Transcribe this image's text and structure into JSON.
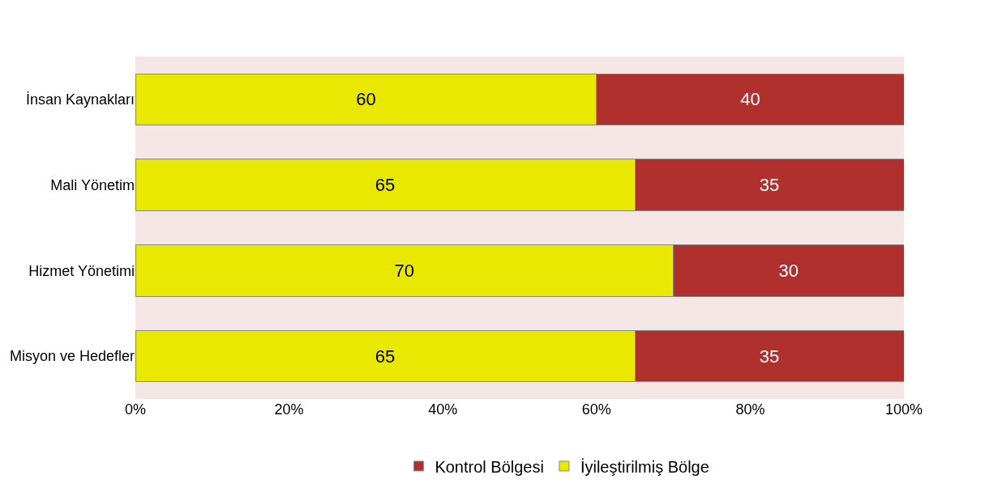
{
  "chart_data": {
    "type": "bar",
    "orientation": "horizontal",
    "stacked": true,
    "categories": [
      "İnsan Kaynakları",
      "Mali Yönetim",
      "Hizmet Yönetimi",
      "Misyon ve Hedefler"
    ],
    "series": [
      {
        "name": "İyileştirilmiş Bölge",
        "color": "#e8e800",
        "values": [
          60,
          65,
          70,
          65
        ]
      },
      {
        "name": "Kontrol Bölgesi",
        "color": "#b0302e",
        "values": [
          40,
          35,
          30,
          35
        ]
      }
    ],
    "xlim": [
      0,
      100
    ],
    "xticks": [
      {
        "value": 0,
        "label": "0%"
      },
      {
        "value": 20,
        "label": "20%"
      },
      {
        "value": 40,
        "label": "40%"
      },
      {
        "value": 60,
        "label": "60%"
      },
      {
        "value": 80,
        "label": "80%"
      },
      {
        "value": 100,
        "label": "100%"
      }
    ],
    "data_labels": true,
    "grid": false,
    "legend": "bottom"
  }
}
